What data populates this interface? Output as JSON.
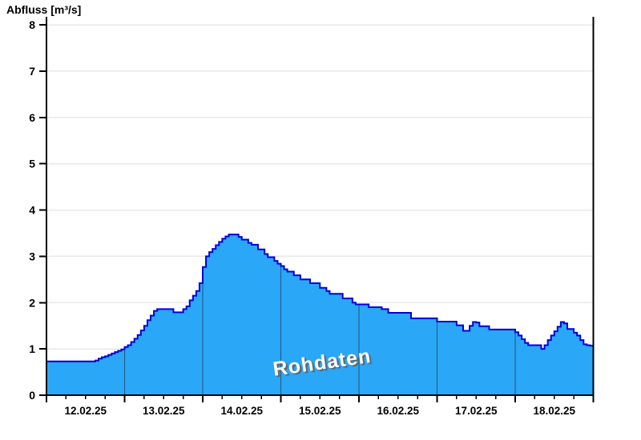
{
  "chart": {
    "title": "Abfluss [m³/s]",
    "watermark": "Rohdaten"
  },
  "chart_data": {
    "type": "area",
    "subtype": "step-after-filled",
    "title": "Abfluss [m³/s]",
    "xlabel": "",
    "ylabel": "Abfluss [m³/s]",
    "watermark": "Rohdaten",
    "legend_position": "none",
    "grid": "horizontal light gray at every integer; dark vertical day separators visible inside filled area",
    "ylim": [
      0,
      8
    ],
    "ytick_step": 1,
    "ytick_labels": [
      "0",
      "1",
      "2",
      "3",
      "4",
      "5",
      "6",
      "7",
      "8"
    ],
    "x_range_days": 7,
    "x_start": "12.02.25 00:00",
    "x_end": "19.02.25 00:00",
    "x_interval_hours": 1,
    "x_minor_tick_hours": 6,
    "x_tick_labels": [
      "12.02.25",
      "13.02.25",
      "14.02.25",
      "15.02.25",
      "16.02.25",
      "17.02.25",
      "18.02.25"
    ],
    "series": [
      {
        "name": "Abfluss Rohdaten",
        "unit": "m³/s",
        "values": [
          0.73,
          0.73,
          0.73,
          0.73,
          0.73,
          0.73,
          0.73,
          0.73,
          0.73,
          0.73,
          0.73,
          0.73,
          0.73,
          0.73,
          0.73,
          0.75,
          0.79,
          0.82,
          0.84,
          0.87,
          0.9,
          0.93,
          0.96,
          0.99,
          1.04,
          1.08,
          1.15,
          1.22,
          1.3,
          1.4,
          1.5,
          1.62,
          1.72,
          1.82,
          1.86,
          1.86,
          1.86,
          1.86,
          1.86,
          1.79,
          1.79,
          1.79,
          1.86,
          1.92,
          2.05,
          2.15,
          2.25,
          2.42,
          2.77,
          3.0,
          3.09,
          3.16,
          3.24,
          3.31,
          3.38,
          3.43,
          3.47,
          3.47,
          3.47,
          3.42,
          3.36,
          3.36,
          3.29,
          3.25,
          3.25,
          3.15,
          3.15,
          3.05,
          2.98,
          2.98,
          2.9,
          2.84,
          2.79,
          2.72,
          2.67,
          2.67,
          2.59,
          2.59,
          2.5,
          2.5,
          2.5,
          2.42,
          2.42,
          2.42,
          2.32,
          2.32,
          2.25,
          2.19,
          2.19,
          2.19,
          2.19,
          2.09,
          2.09,
          2.09,
          2.0,
          1.96,
          1.96,
          1.96,
          1.96,
          1.9,
          1.9,
          1.9,
          1.9,
          1.86,
          1.86,
          1.78,
          1.78,
          1.78,
          1.78,
          1.78,
          1.78,
          1.78,
          1.66,
          1.66,
          1.66,
          1.66,
          1.66,
          1.66,
          1.66,
          1.66,
          1.59,
          1.59,
          1.59,
          1.59,
          1.59,
          1.59,
          1.51,
          1.51,
          1.39,
          1.39,
          1.5,
          1.58,
          1.57,
          1.49,
          1.49,
          1.49,
          1.42,
          1.42,
          1.42,
          1.42,
          1.42,
          1.42,
          1.42,
          1.42,
          1.36,
          1.29,
          1.21,
          1.13,
          1.08,
          1.08,
          1.08,
          1.08,
          1.0,
          1.08,
          1.19,
          1.29,
          1.38,
          1.48,
          1.58,
          1.55,
          1.43,
          1.43,
          1.35,
          1.29,
          1.19,
          1.1,
          1.08,
          1.07
        ]
      }
    ],
    "colors": {
      "fill": "#2BA7F7",
      "line": "#0000DD",
      "grid": "#E9E9E9",
      "day_separator": "#20618E",
      "axis": "#000000",
      "tick_text": "#000000",
      "watermark_text": "#FFFFFF",
      "watermark_shadow": "#5F5F5F",
      "background": "#FFFFFF"
    }
  }
}
